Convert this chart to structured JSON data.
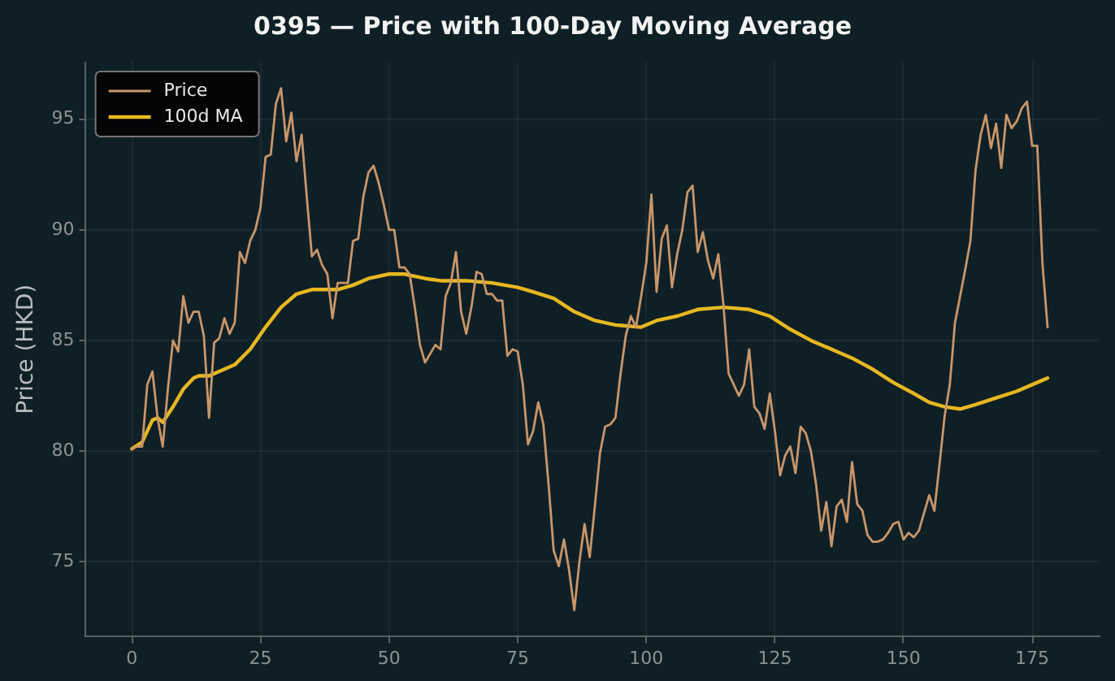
{
  "chart_data": {
    "type": "line",
    "title": "0395 — Price with 100-Day Moving Average",
    "ylabel": "Price (HKD)",
    "xlim": [
      -8.95,
      187.95
    ],
    "xticks": [
      0,
      25,
      50,
      75,
      100,
      125,
      150,
      175
    ],
    "ylim": [
      71.6,
      97.6
    ],
    "yticks": [
      75,
      80,
      85,
      90,
      95
    ],
    "grid": true,
    "legend": "top left",
    "line_style": "solid",
    "marker": "none",
    "series": [
      {
        "name": "Price",
        "color": "#c8966a",
        "x": [
          0,
          1,
          2,
          3,
          4,
          5,
          6,
          7,
          8,
          9,
          10,
          11,
          12,
          13,
          14,
          15,
          16,
          17,
          18,
          19,
          20,
          21,
          22,
          23,
          24,
          25,
          26,
          27,
          28,
          29,
          30,
          31,
          32,
          33,
          34,
          35,
          36,
          37,
          38,
          39,
          40,
          41,
          42,
          43,
          44,
          45,
          46,
          47,
          48,
          49,
          50,
          51,
          52,
          53,
          54,
          55,
          56,
          57,
          58,
          59,
          60,
          61,
          62,
          63,
          64,
          65,
          66,
          67,
          68,
          69,
          70,
          71,
          72,
          73,
          74,
          75,
          76,
          77,
          78,
          79,
          80,
          81,
          82,
          83,
          84,
          85,
          86,
          87,
          88,
          89,
          90,
          91,
          92,
          93,
          94,
          95,
          96,
          97,
          98,
          99,
          100,
          101,
          102,
          103,
          104,
          105,
          106,
          107,
          108,
          109,
          110,
          111,
          112,
          113,
          114,
          115,
          116,
          117,
          118,
          119,
          120,
          121,
          122,
          123,
          124,
          125,
          126,
          127,
          128,
          129,
          130,
          131,
          132,
          133,
          134,
          135,
          136,
          137,
          138,
          139,
          140,
          141,
          142,
          143,
          144,
          145,
          146,
          147,
          148,
          149,
          150,
          151,
          152,
          153,
          154,
          155,
          156,
          157,
          158,
          159,
          160,
          161,
          162,
          163,
          164,
          165,
          166,
          167,
          168,
          169,
          170,
          171,
          172,
          173,
          174,
          175,
          176,
          177,
          178
        ],
        "values": [
          80.1,
          80.2,
          80.2,
          83,
          83.6,
          81.5,
          80.2,
          82.8,
          85,
          84.5,
          87,
          85.8,
          86.3,
          86.3,
          85.2,
          81.5,
          84.9,
          85.1,
          86,
          85.3,
          85.8,
          89,
          88.5,
          89.5,
          90,
          91,
          93.3,
          93.4,
          95.7,
          96.4,
          94,
          95.3,
          93.1,
          94.3,
          91.5,
          88.8,
          89.1,
          88.4,
          88,
          86,
          87.6,
          87.6,
          87.6,
          89.5,
          89.6,
          91.5,
          92.6,
          92.9,
          92.1,
          91.1,
          90,
          90,
          88.3,
          88.3,
          88,
          86.5,
          84.8,
          84,
          84.4,
          84.8,
          84.6,
          87,
          87.6,
          89,
          86.3,
          85.3,
          86.5,
          88.1,
          88,
          87.1,
          87.1,
          86.8,
          86.8,
          84.3,
          84.6,
          84.5,
          83,
          80.3,
          80.9,
          82.2,
          81.2,
          78.5,
          75.5,
          74.8,
          76,
          74.6,
          72.8,
          75,
          76.7,
          75.2,
          77.5,
          79.9,
          81.1,
          81.2,
          81.5,
          83.5,
          85.2,
          86.1,
          85.6,
          87,
          88.5,
          91.6,
          87.2,
          89.6,
          90.2,
          87.4,
          88.9,
          90,
          91.7,
          92,
          89,
          89.9,
          88.6,
          87.8,
          88.9,
          86.6,
          83.5,
          83,
          82.5,
          83,
          84.6,
          82,
          81.7,
          81,
          82.6,
          80.9,
          78.9,
          79.8,
          80.2,
          79,
          81.1,
          80.8,
          80,
          78.5,
          76.4,
          77.7,
          75.7,
          77.5,
          77.8,
          76.8,
          79.5,
          77.6,
          77.3,
          76.2,
          75.9,
          75.9,
          76,
          76.3,
          76.7,
          76.8,
          76,
          76.3,
          76.1,
          76.4,
          77.2,
          78,
          77.3,
          79.4,
          81.6,
          83,
          85.8,
          87,
          88.2,
          89.5,
          92.7,
          94.3,
          95.2,
          93.7,
          94.8,
          92.8,
          95.2,
          94.6,
          94.9,
          95.5,
          95.8,
          93.8,
          93.8,
          88.5,
          85.6
        ]
      },
      {
        "name": "100d MA",
        "color": "#e6b820",
        "x": [
          0,
          2,
          4,
          5,
          6,
          8,
          10,
          12,
          13,
          15,
          18,
          20,
          23,
          26,
          29,
          32,
          35,
          40,
          43,
          46,
          50,
          53,
          57,
          60,
          65,
          70,
          75,
          78,
          82,
          86,
          90,
          94,
          99,
          102,
          106,
          110,
          115,
          120,
          124,
          128,
          132,
          136,
          140,
          144,
          148,
          152,
          155,
          158,
          161,
          164,
          168,
          172,
          176,
          178
        ],
        "values": [
          80.1,
          80.4,
          81.4,
          81.5,
          81.3,
          82,
          82.8,
          83.3,
          83.4,
          83.4,
          83.7,
          83.9,
          84.6,
          85.6,
          86.5,
          87.1,
          87.3,
          87.3,
          87.5,
          87.8,
          88,
          88,
          87.8,
          87.7,
          87.7,
          87.6,
          87.4,
          87.2,
          86.9,
          86.3,
          85.9,
          85.7,
          85.6,
          85.9,
          86.1,
          86.4,
          86.5,
          86.4,
          86.1,
          85.5,
          85,
          84.6,
          84.2,
          83.7,
          83.1,
          82.6,
          82.2,
          82,
          81.9,
          82.1,
          82.4,
          82.7,
          83.1,
          83.3
        ]
      }
    ]
  }
}
